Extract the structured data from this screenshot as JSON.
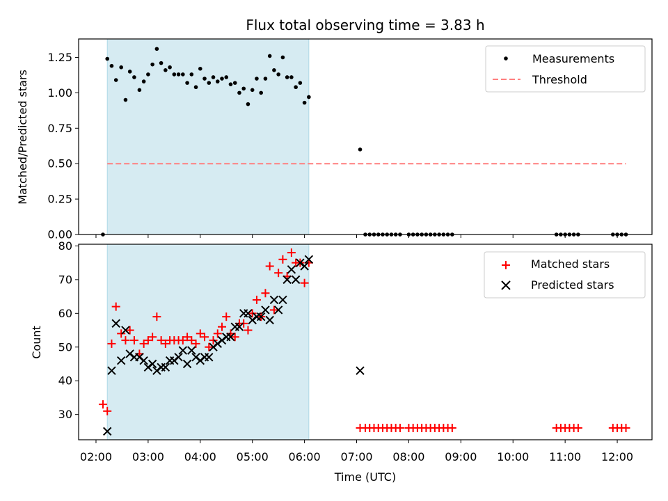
{
  "chart_data": [
    {
      "type": "scatter",
      "title": "Flux total observing time = 3.83 h",
      "xlabel": "",
      "ylabel": "Matched/Predicted stars",
      "ylim": [
        0,
        1.38
      ],
      "yticks": [
        "0.00",
        "0.25",
        "0.50",
        "0.75",
        "1.00",
        "1.25"
      ],
      "ytick_values": [
        0,
        0.25,
        0.5,
        0.75,
        1.0,
        1.25
      ],
      "xlim": [
        "01:40",
        "12:40"
      ],
      "shaded_span": [
        "02:13",
        "06:05"
      ],
      "legend": {
        "position": "top-right",
        "entries": [
          "Measurements",
          "Threshold"
        ]
      },
      "colors": {
        "measurements": "#000000",
        "threshold": "#ff7f7f",
        "span": "#add8e6"
      },
      "series": [
        {
          "name": "Measurements",
          "x": [
            "02:08",
            "02:13",
            "02:18",
            "02:23",
            "02:29",
            "02:34",
            "02:39",
            "02:44",
            "02:50",
            "02:55",
            "03:00",
            "03:05",
            "03:10",
            "03:15",
            "03:20",
            "03:25",
            "03:30",
            "03:35",
            "03:40",
            "03:45",
            "03:50",
            "03:55",
            "04:00",
            "04:05",
            "04:10",
            "04:15",
            "04:20",
            "04:25",
            "04:30",
            "04:35",
            "04:40",
            "04:45",
            "04:50",
            "04:55",
            "05:00",
            "05:05",
            "05:10",
            "05:15",
            "05:20",
            "05:25",
            "05:30",
            "05:35",
            "05:40",
            "05:45",
            "05:50",
            "05:55",
            "06:00",
            "06:05",
            "07:04",
            "07:10",
            "07:15",
            "07:20",
            "07:25",
            "07:30",
            "07:35",
            "07:40",
            "07:45",
            "07:50",
            "08:00",
            "08:05",
            "08:10",
            "08:15",
            "08:20",
            "08:25",
            "08:30",
            "08:35",
            "08:40",
            "08:45",
            "08:50",
            "10:50",
            "10:55",
            "11:00",
            "11:05",
            "11:10",
            "11:15",
            "11:55",
            "12:00",
            "12:05",
            "12:10"
          ],
          "values": [
            0.0,
            1.24,
            1.19,
            1.09,
            1.18,
            0.95,
            1.15,
            1.11,
            1.02,
            1.08,
            1.13,
            1.2,
            1.31,
            1.21,
            1.16,
            1.18,
            1.13,
            1.13,
            1.13,
            1.07,
            1.13,
            1.04,
            1.17,
            1.1,
            1.07,
            1.11,
            1.08,
            1.1,
            1.11,
            1.06,
            1.07,
            1.0,
            1.03,
            0.92,
            1.02,
            1.1,
            1.0,
            1.1,
            1.26,
            1.16,
            1.13,
            1.25,
            1.11,
            1.11,
            1.04,
            1.07,
            0.93,
            0.97,
            0.6,
            0.0,
            0.0,
            0.0,
            0.0,
            0.0,
            0.0,
            0.0,
            0.0,
            0.0,
            0.0,
            0.0,
            0.0,
            0.0,
            0.0,
            0.0,
            0.0,
            0.0,
            0.0,
            0.0,
            0.0,
            0.0,
            0.0,
            0.0,
            0.0,
            0.0,
            0.0,
            0.0,
            0.0,
            0.0,
            0.0
          ]
        },
        {
          "name": "Threshold",
          "x": [
            "02:13",
            "12:10"
          ],
          "values": [
            0.5,
            0.5
          ]
        }
      ]
    },
    {
      "type": "scatter",
      "title": "",
      "xlabel": "Time (UTC)",
      "ylabel": "Count",
      "ylim": [
        22.5,
        80.5
      ],
      "yticks": [
        "30",
        "40",
        "50",
        "60",
        "70",
        "80"
      ],
      "ytick_values": [
        30,
        40,
        50,
        60,
        70,
        80
      ],
      "xticks": [
        "02:00",
        "03:00",
        "04:00",
        "05:00",
        "06:00",
        "07:00",
        "08:00",
        "09:00",
        "10:00",
        "11:00",
        "12:00"
      ],
      "xlim": [
        "01:40",
        "12:40"
      ],
      "shaded_span": [
        "02:13",
        "06:05"
      ],
      "legend": {
        "position": "top-right",
        "entries": [
          "Matched stars",
          "Predicted stars"
        ]
      },
      "colors": {
        "matched": "#ff0000",
        "predicted": "#000000",
        "span": "#add8e6"
      },
      "series": [
        {
          "name": "Matched stars",
          "marker": "+",
          "x": [
            "02:08",
            "02:13",
            "02:18",
            "02:23",
            "02:29",
            "02:34",
            "02:39",
            "02:44",
            "02:50",
            "02:55",
            "03:00",
            "03:05",
            "03:10",
            "03:15",
            "03:20",
            "03:25",
            "03:30",
            "03:35",
            "03:40",
            "03:45",
            "03:50",
            "03:55",
            "04:00",
            "04:05",
            "04:10",
            "04:15",
            "04:20",
            "04:25",
            "04:30",
            "04:35",
            "04:40",
            "04:45",
            "04:50",
            "04:55",
            "05:00",
            "05:05",
            "05:10",
            "05:15",
            "05:20",
            "05:25",
            "05:30",
            "05:35",
            "05:40",
            "05:45",
            "05:50",
            "05:55",
            "06:00",
            "06:05",
            "07:04",
            "07:10",
            "07:15",
            "07:20",
            "07:25",
            "07:30",
            "07:35",
            "07:40",
            "07:45",
            "07:50",
            "08:00",
            "08:05",
            "08:10",
            "08:15",
            "08:20",
            "08:25",
            "08:30",
            "08:35",
            "08:40",
            "08:45",
            "08:50",
            "10:50",
            "10:55",
            "11:00",
            "11:05",
            "11:10",
            "11:15",
            "11:55",
            "12:00",
            "12:05",
            "12:10"
          ],
          "values": [
            33,
            31,
            51,
            62,
            54,
            52,
            55,
            52,
            48,
            51,
            52,
            53,
            59,
            52,
            51,
            52,
            52,
            52,
            52,
            53,
            52,
            51,
            54,
            53,
            50,
            52,
            54,
            56,
            59,
            54,
            53,
            57,
            57,
            55,
            60,
            64,
            59,
            66,
            74,
            61,
            72,
            76,
            71,
            78,
            75,
            75,
            69,
            75,
            26,
            26,
            26,
            26,
            26,
            26,
            26,
            26,
            26,
            26,
            26,
            26,
            26,
            26,
            26,
            26,
            26,
            26,
            26,
            26,
            26,
            26,
            26,
            26,
            26,
            26,
            26,
            26,
            26,
            26,
            26
          ]
        },
        {
          "name": "Predicted stars",
          "marker": "x",
          "x": [
            "02:13",
            "02:18",
            "02:23",
            "02:29",
            "02:34",
            "02:39",
            "02:44",
            "02:50",
            "02:55",
            "03:00",
            "03:05",
            "03:10",
            "03:15",
            "03:20",
            "03:25",
            "03:30",
            "03:35",
            "03:40",
            "03:45",
            "03:50",
            "03:55",
            "04:00",
            "04:05",
            "04:10",
            "04:15",
            "04:20",
            "04:25",
            "04:30",
            "04:35",
            "04:40",
            "04:45",
            "04:50",
            "04:55",
            "05:00",
            "05:05",
            "05:10",
            "05:15",
            "05:20",
            "05:25",
            "05:30",
            "05:35",
            "05:40",
            "05:45",
            "05:50",
            "05:55",
            "06:00",
            "06:05",
            "07:04"
          ],
          "values": [
            25,
            43,
            57,
            46,
            55,
            48,
            47,
            47,
            46,
            44,
            45,
            43,
            44,
            44,
            46,
            46,
            47,
            49,
            45,
            49,
            47,
            46,
            47,
            47,
            50,
            51,
            52,
            53,
            53,
            56,
            56,
            60,
            60,
            58,
            59,
            59,
            61,
            58,
            64,
            61,
            64,
            70,
            73,
            70,
            75,
            74,
            76,
            43
          ]
        }
      ]
    }
  ]
}
